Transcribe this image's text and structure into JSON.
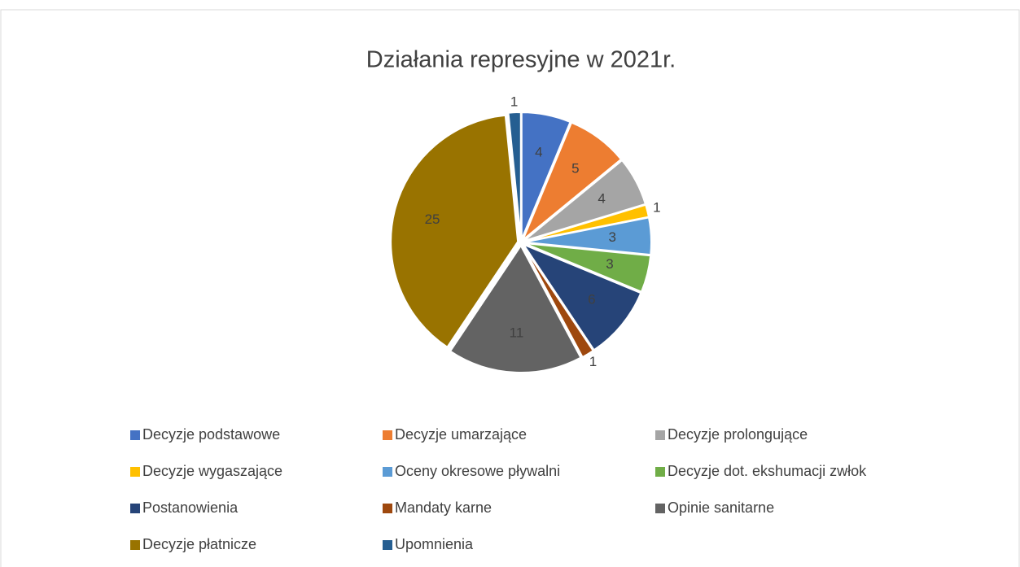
{
  "chart_data": {
    "type": "pie",
    "title": "Działania represyjne w 2021r.",
    "categories": [
      "Decyzje podstawowe",
      "Decyzje umarzające",
      "Decyzje prolongujące",
      "Decyzje wygaszające",
      "Oceny okresowe pływalni",
      "Decyzje dot. ekshumacji zwłok",
      "Postanowienia",
      "Mandaty karne",
      "Opinie sanitarne",
      "Decyzje płatnicze",
      "Upomnienia"
    ],
    "values": [
      4,
      5,
      4,
      1,
      3,
      3,
      6,
      1,
      11,
      25,
      1
    ],
    "colors": [
      "#4472c4",
      "#ed7d31",
      "#a5a5a5",
      "#ffc000",
      "#5b9bd5",
      "#70ad47",
      "#264478",
      "#9e480e",
      "#636363",
      "#997300",
      "#255e91"
    ],
    "legend": "bottom"
  }
}
